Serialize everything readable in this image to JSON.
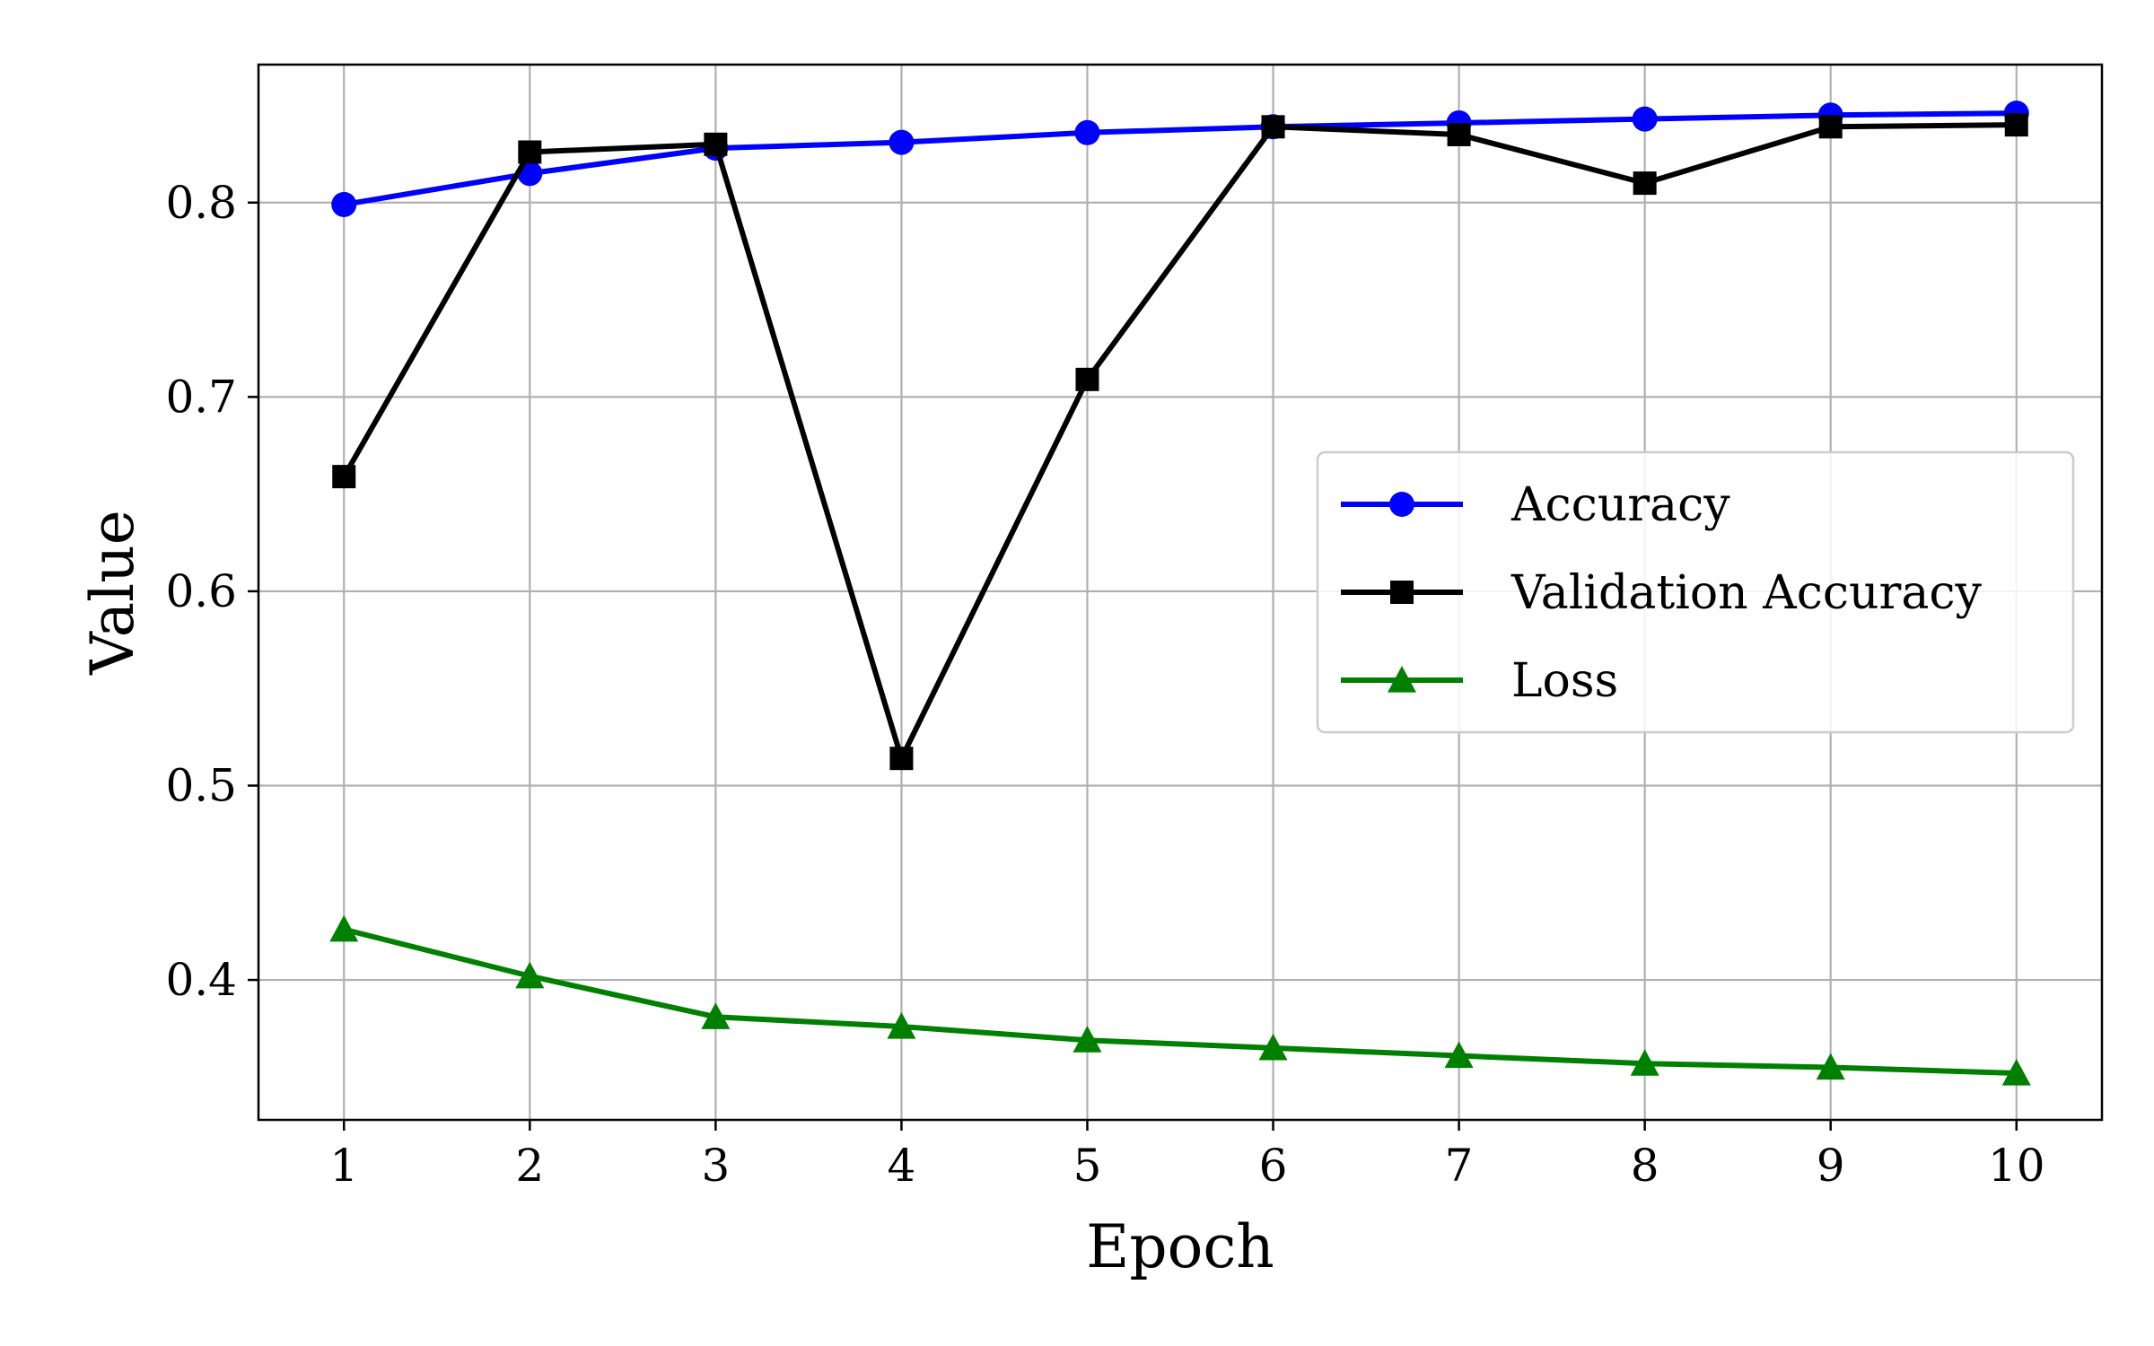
{
  "chart_data": {
    "type": "line",
    "title": "",
    "xlabel": "Epoch",
    "ylabel": "Value",
    "x": [
      1,
      2,
      3,
      4,
      5,
      6,
      7,
      8,
      9,
      10
    ],
    "x_ticks": [
      "1",
      "2",
      "3",
      "4",
      "5",
      "6",
      "7",
      "8",
      "9",
      "10"
    ],
    "y_ticks": [
      0.4,
      0.5,
      0.6,
      0.7,
      0.8
    ],
    "y_tick_labels": [
      "0.4",
      "0.5",
      "0.6",
      "0.7",
      "0.8"
    ],
    "xlim": [
      0.54,
      10.46
    ],
    "ylim": [
      0.328,
      0.871
    ],
    "grid": true,
    "legend_position": "center-right",
    "series": [
      {
        "name": "Accuracy",
        "color": "#0000ff",
        "marker": "circle",
        "values": [
          0.799,
          0.815,
          0.828,
          0.831,
          0.836,
          0.839,
          0.841,
          0.843,
          0.845,
          0.846
        ]
      },
      {
        "name": "Validation Accuracy",
        "color": "#000000",
        "marker": "square",
        "values": [
          0.659,
          0.826,
          0.83,
          0.514,
          0.709,
          0.839,
          0.835,
          0.81,
          0.839,
          0.84
        ]
      },
      {
        "name": "Loss",
        "color": "#008000",
        "marker": "triangle",
        "values": [
          0.426,
          0.402,
          0.381,
          0.376,
          0.369,
          0.365,
          0.361,
          0.357,
          0.355,
          0.352
        ]
      }
    ]
  }
}
